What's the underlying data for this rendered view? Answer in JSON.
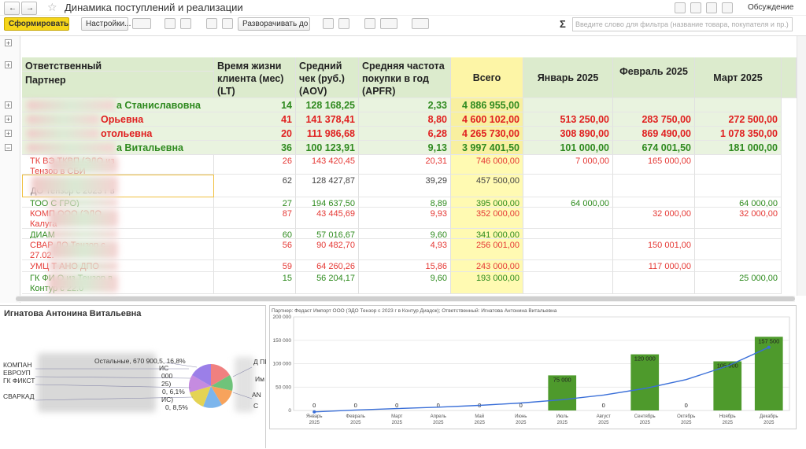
{
  "header": {
    "title": "Динамика поступлений и реализации",
    "discuss": "Обсуждение"
  },
  "toolbar": {
    "generate": "Сформировать",
    "settings": "Настройки...",
    "expand": "Разворачивать до",
    "sum": "Σ",
    "search_placeholder": "Введите слово для фильтра (название товара, покупателя и пр.)"
  },
  "table": {
    "columns": {
      "responsible": "Ответственный",
      "partner": "Партнер",
      "headers": [
        "Время жизни клиента (мес) (LT)",
        "Средний чек (руб.) (AOV)",
        "Средняя частота покупки в год (APFR)",
        "Всего",
        "Январь 2025",
        "Февраль 2025",
        "Март 2025"
      ]
    },
    "groups": [
      {
        "color": "#2f8a1f",
        "cells": [
          "а Станиславовна",
          "14",
          "128 168,25",
          "2,33",
          "4 886 955,00",
          "",
          "",
          ""
        ]
      },
      {
        "color": "#e02020",
        "cells": [
          "Орьевна",
          "41",
          "141 378,41",
          "8,80",
          "4 600 102,00",
          "513 250,00",
          "283 750,00",
          "272 500,00"
        ]
      },
      {
        "color": "#e02020",
        "cells": [
          "отольевна",
          "20",
          "111 986,68",
          "6,28",
          "4 265 730,00",
          "308 890,00",
          "869 490,00",
          "1 078 350,00"
        ]
      },
      {
        "color": "#2f8a1f",
        "cells": [
          "а Витальевна",
          "36",
          "100 123,91",
          "9,13",
          "3 997 401,50",
          "101 000,00",
          "674 001,50",
          "181 000,00"
        ]
      }
    ],
    "rows": [
      {
        "color": "#e53935",
        "cells": [
          "ТК ВЭ ТКВП (ЭДО из Тензор в СБИ",
          "26",
          "143 420,45",
          "20,31",
          "746 000,00",
          "7 000,00",
          "165 000,00",
          ""
        ]
      },
      {
        "color": "#444444",
        "cells": [
          "ДО Тензор с 2023 г в Контур",
          "62",
          "128 427,87",
          "39,29",
          "457 500,00",
          "",
          "",
          ""
        ]
      },
      {
        "color": "#2e8b1e",
        "cells": [
          "ТОО С ГРО)",
          "27",
          "194 637,50",
          "8,89",
          "395 000,00",
          "64 000,00",
          "",
          "64 000,00"
        ]
      },
      {
        "color": "#e53935",
        "cells": [
          "КОМП ООО (ЭДО Калуга",
          "87",
          "43 445,69",
          "9,93",
          "352 000,00",
          "",
          "32 000,00",
          "32 000,00"
        ]
      },
      {
        "color": "#2e8b1e",
        "cells": [
          "ДИАМ",
          "60",
          "57 016,67",
          "9,60",
          "341 000,00",
          "",
          "",
          ""
        ]
      },
      {
        "color": "#e53935",
        "cells": [
          "СВАР ДО Тензор с 27.02.",
          "56",
          "90 482,70",
          "4,93",
          "256 001,00",
          "",
          "150 001,00",
          ""
        ]
      },
      {
        "color": "#e53935",
        "cells": [
          "УМЦ Т АНО ДПО",
          "59",
          "64 260,26",
          "15,86",
          "243 000,00",
          "",
          "117 000,00",
          ""
        ]
      },
      {
        "color": "#2e8b1e",
        "cells": [
          "ГК ФИ О из Тензор в Контур с 22.0",
          "15",
          "56 204,17",
          "9,60",
          "193 000,00",
          "",
          "",
          "25 000,00"
        ]
      }
    ]
  },
  "pie_panel": {
    "title": "Игнатова Антонина Витальевна",
    "others_label": "Остальные, 670 900,5, 16,8%",
    "left_labels": [
      "КОМПАН",
      "ЕВРОУП",
      "ГК ФИКСТ",
      "СВАРКАД"
    ],
    "mid_labels": [
      "ИС",
      "000",
      "25)",
      "0, 6,1%",
      "ИС)",
      "0, 8,5%"
    ],
    "right_labels": [
      "Д ПР",
      "Им",
      "AN",
      "С"
    ]
  },
  "chart_data": {
    "type": "bar",
    "title": "Партнер: Федаст Импорт ООО (ЭДО Тензор с 2023 г в Контур Диадок); Ответственный: Игнатова Антонина Витальевна",
    "categories": [
      "Январь 2025",
      "Февраль 2025",
      "Март 2025",
      "Апрель 2025",
      "Май 2025",
      "Июнь 2025",
      "Июль 2025",
      "Август 2025",
      "Сентябрь 2025",
      "Октябрь 2025",
      "Ноябрь 2025",
      "Декабрь 2025"
    ],
    "values": [
      0,
      0,
      0,
      0,
      0,
      0,
      75000,
      0,
      120000,
      0,
      105000,
      157500
    ],
    "value_labels": [
      "0",
      "0",
      "0",
      "0",
      "0",
      "0",
      "75 000",
      "0",
      "120 000",
      "0",
      "105 000",
      "157 500"
    ],
    "color": "#4e9a2c",
    "trend": {
      "color": "#3a6fd8",
      "values": [
        -3000,
        1000,
        4000,
        7000,
        11000,
        16000,
        23000,
        33000,
        47000,
        66000,
        95000,
        135000
      ]
    },
    "ylim": [
      0,
      200000
    ],
    "yticks": [
      0,
      {
        "value": 50000,
        "label": "50 000"
      },
      {
        "value": 100000,
        "label": "100 000"
      },
      {
        "value": 150000,
        "label": "150 000"
      },
      {
        "value": 200000,
        "label": "200 000"
      }
    ],
    "grid": true
  }
}
